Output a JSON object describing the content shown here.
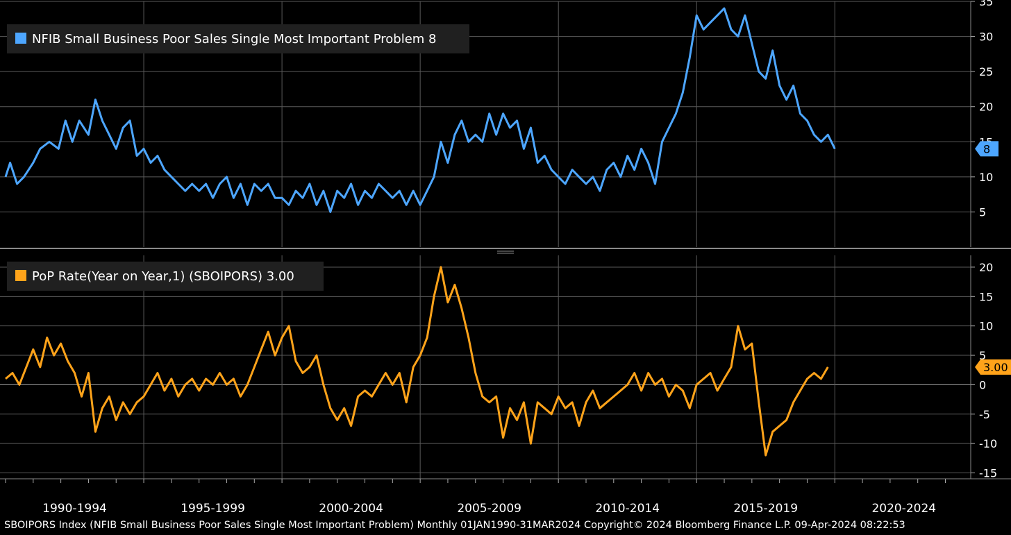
{
  "footer_text": "SBOIPORS Index (NFIB Small Business Poor Sales Single Most Important Problem) Monthly 01JAN1990-31MAR2024 Copyright© 2024 Bloomberg Finance L.P. 09-Apr-2024 08:22:53",
  "colors": {
    "top_series": "#4da6ff",
    "bottom_series": "#ffa31a",
    "grid": "#5a5a5a",
    "background": "#000000"
  },
  "x_period_labels": [
    "1990-1994",
    "1995-1999",
    "2000-2004",
    "2005-2009",
    "2010-2014",
    "2015-2019",
    "2020-2024"
  ],
  "chart_data": [
    {
      "type": "line",
      "legend": "NFIB Small Business Poor Sales Single Most Important Problem 8",
      "last_value_label": "8",
      "y_axis_side": "right",
      "ylim": [
        0,
        35
      ],
      "yticks": [
        5,
        10,
        15,
        20,
        25,
        30,
        35
      ],
      "xlim": [
        "1990-01",
        "2024-12"
      ],
      "grid": true,
      "series": [
        {
          "points": [
            [
              "1990-01",
              10
            ],
            [
              "1990-03",
              12
            ],
            [
              "1990-06",
              9
            ],
            [
              "1990-09",
              10
            ],
            [
              "1991-01",
              12
            ],
            [
              "1991-04",
              14
            ],
            [
              "1991-08",
              15
            ],
            [
              "1991-12",
              14
            ],
            [
              "1992-03",
              18
            ],
            [
              "1992-06",
              15
            ],
            [
              "1992-09",
              18
            ],
            [
              "1993-01",
              16
            ],
            [
              "1993-04",
              21
            ],
            [
              "1993-07",
              18
            ],
            [
              "1993-10",
              16
            ],
            [
              "1994-01",
              14
            ],
            [
              "1994-04",
              17
            ],
            [
              "1994-07",
              18
            ],
            [
              "1994-10",
              13
            ],
            [
              "1995-01",
              14
            ],
            [
              "1995-04",
              12
            ],
            [
              "1995-07",
              13
            ],
            [
              "1995-10",
              11
            ],
            [
              "1996-01",
              10
            ],
            [
              "1996-04",
              9
            ],
            [
              "1996-07",
              8
            ],
            [
              "1996-10",
              9
            ],
            [
              "1997-01",
              8
            ],
            [
              "1997-04",
              9
            ],
            [
              "1997-07",
              7
            ],
            [
              "1997-10",
              9
            ],
            [
              "1998-01",
              10
            ],
            [
              "1998-04",
              7
            ],
            [
              "1998-07",
              9
            ],
            [
              "1998-10",
              6
            ],
            [
              "1999-01",
              9
            ],
            [
              "1999-04",
              8
            ],
            [
              "1999-07",
              9
            ],
            [
              "1999-10",
              7
            ],
            [
              "2000-01",
              7
            ],
            [
              "2000-04",
              6
            ],
            [
              "2000-07",
              8
            ],
            [
              "2000-10",
              7
            ],
            [
              "2001-01",
              9
            ],
            [
              "2001-04",
              6
            ],
            [
              "2001-07",
              8
            ],
            [
              "2001-10",
              5
            ],
            [
              "2002-01",
              8
            ],
            [
              "2002-04",
              7
            ],
            [
              "2002-07",
              9
            ],
            [
              "2002-10",
              6
            ],
            [
              "2003-01",
              8
            ],
            [
              "2003-04",
              7
            ],
            [
              "2003-07",
              9
            ],
            [
              "2003-10",
              8
            ],
            [
              "2004-01",
              7
            ],
            [
              "2004-04",
              8
            ],
            [
              "2004-07",
              6
            ],
            [
              "2004-10",
              8
            ],
            [
              "2005-01",
              6
            ],
            [
              "2005-04",
              8
            ],
            [
              "2005-07",
              10
            ],
            [
              "2005-10",
              15
            ],
            [
              "2006-01",
              12
            ],
            [
              "2006-04",
              16
            ],
            [
              "2006-07",
              18
            ],
            [
              "2006-10",
              15
            ],
            [
              "2007-01",
              16
            ],
            [
              "2007-04",
              15
            ],
            [
              "2007-07",
              19
            ],
            [
              "2007-10",
              16
            ],
            [
              "2008-01",
              19
            ],
            [
              "2008-04",
              17
            ],
            [
              "2008-07",
              18
            ],
            [
              "2008-10",
              14
            ],
            [
              "2009-01",
              17
            ],
            [
              "2009-04",
              12
            ],
            [
              "2009-07",
              13
            ],
            [
              "2009-10",
              11
            ],
            [
              "2010-01",
              10
            ],
            [
              "2010-04",
              9
            ],
            [
              "2010-07",
              11
            ],
            [
              "2010-10",
              10
            ],
            [
              "2011-01",
              9
            ],
            [
              "2011-04",
              10
            ],
            [
              "2011-07",
              8
            ],
            [
              "2011-10",
              11
            ],
            [
              "2012-01",
              12
            ],
            [
              "2012-04",
              10
            ],
            [
              "2012-07",
              13
            ],
            [
              "2012-10",
              11
            ],
            [
              "2013-01",
              14
            ],
            [
              "2013-04",
              12
            ],
            [
              "2013-07",
              9
            ],
            [
              "2013-10",
              15
            ],
            [
              "2014-01",
              17
            ],
            [
              "2014-04",
              19
            ],
            [
              "2014-07",
              22
            ],
            [
              "2014-10",
              27
            ],
            [
              "2015-01",
              33
            ],
            [
              "2015-04",
              31
            ],
            [
              "2015-07",
              32
            ],
            [
              "2015-10",
              33
            ],
            [
              "2016-01",
              34
            ],
            [
              "2016-04",
              31
            ],
            [
              "2016-07",
              30
            ],
            [
              "2016-10",
              33
            ],
            [
              "2017-01",
              29
            ],
            [
              "2017-04",
              25
            ],
            [
              "2017-07",
              24
            ],
            [
              "2017-10",
              28
            ],
            [
              "2018-01",
              23
            ],
            [
              "2018-04",
              21
            ],
            [
              "2018-07",
              23
            ],
            [
              "2018-10",
              19
            ],
            [
              "2019-01",
              18
            ],
            [
              "2019-04",
              16
            ],
            [
              "2019-07",
              15
            ],
            [
              "2019-10",
              16
            ],
            [
              "2020-01",
              14
            ]
          ]
        }
      ]
    },
    {
      "type": "line",
      "legend": "PoP Rate(Year on Year,1) (SBOIPORS) 3.00",
      "last_value_label": "3.00",
      "y_axis_side": "right",
      "ylim": [
        -16,
        22
      ],
      "yticks": [
        -15,
        -10,
        -5,
        0,
        5,
        10,
        15,
        20
      ],
      "xlim": [
        "1990-01",
        "2024-12"
      ],
      "grid": true,
      "series": [
        {
          "points": [
            [
              "1990-01",
              1
            ],
            [
              "1990-04",
              2
            ],
            [
              "1990-07",
              0
            ],
            [
              "1990-10",
              3
            ],
            [
              "1991-01",
              6
            ],
            [
              "1991-04",
              3
            ],
            [
              "1991-07",
              8
            ],
            [
              "1991-10",
              5
            ],
            [
              "1992-01",
              7
            ],
            [
              "1992-04",
              4
            ],
            [
              "1992-07",
              2
            ],
            [
              "1992-10",
              -2
            ],
            [
              "1993-01",
              2
            ],
            [
              "1993-04",
              -8
            ],
            [
              "1993-07",
              -4
            ],
            [
              "1993-10",
              -2
            ],
            [
              "1994-01",
              -6
            ],
            [
              "1994-04",
              -3
            ],
            [
              "1994-07",
              -5
            ],
            [
              "1994-10",
              -3
            ],
            [
              "1995-01",
              -2
            ],
            [
              "1995-04",
              0
            ],
            [
              "1995-07",
              2
            ],
            [
              "1995-10",
              -1
            ],
            [
              "1996-01",
              1
            ],
            [
              "1996-04",
              -2
            ],
            [
              "1996-07",
              0
            ],
            [
              "1996-10",
              1
            ],
            [
              "1997-01",
              -1
            ],
            [
              "1997-04",
              1
            ],
            [
              "1997-07",
              0
            ],
            [
              "1997-10",
              2
            ],
            [
              "1998-01",
              0
            ],
            [
              "1998-04",
              1
            ],
            [
              "1998-07",
              -2
            ],
            [
              "1998-10",
              0
            ],
            [
              "1999-01",
              3
            ],
            [
              "1999-04",
              6
            ],
            [
              "1999-07",
              9
            ],
            [
              "1999-10",
              5
            ],
            [
              "2000-01",
              8
            ],
            [
              "2000-04",
              10
            ],
            [
              "2000-07",
              4
            ],
            [
              "2000-10",
              2
            ],
            [
              "2001-01",
              3
            ],
            [
              "2001-04",
              5
            ],
            [
              "2001-07",
              0
            ],
            [
              "2001-10",
              -4
            ],
            [
              "2002-01",
              -6
            ],
            [
              "2002-04",
              -4
            ],
            [
              "2002-07",
              -7
            ],
            [
              "2002-10",
              -2
            ],
            [
              "2003-01",
              -1
            ],
            [
              "2003-04",
              -2
            ],
            [
              "2003-07",
              0
            ],
            [
              "2003-10",
              2
            ],
            [
              "2004-01",
              0
            ],
            [
              "2004-04",
              2
            ],
            [
              "2004-07",
              -3
            ],
            [
              "2004-10",
              3
            ],
            [
              "2005-01",
              5
            ],
            [
              "2005-04",
              8
            ],
            [
              "2005-07",
              15
            ],
            [
              "2005-10",
              20
            ],
            [
              "2006-01",
              14
            ],
            [
              "2006-04",
              17
            ],
            [
              "2006-07",
              13
            ],
            [
              "2006-10",
              8
            ],
            [
              "2007-01",
              2
            ],
            [
              "2007-04",
              -2
            ],
            [
              "2007-07",
              -3
            ],
            [
              "2007-10",
              -2
            ],
            [
              "2008-01",
              -9
            ],
            [
              "2008-04",
              -4
            ],
            [
              "2008-07",
              -6
            ],
            [
              "2008-10",
              -3
            ],
            [
              "2009-01",
              -10
            ],
            [
              "2009-04",
              -3
            ],
            [
              "2009-07",
              -4
            ],
            [
              "2009-10",
              -5
            ],
            [
              "2010-01",
              -2
            ],
            [
              "2010-04",
              -4
            ],
            [
              "2010-07",
              -3
            ],
            [
              "2010-10",
              -7
            ],
            [
              "2011-01",
              -3
            ],
            [
              "2011-04",
              -1
            ],
            [
              "2011-07",
              -4
            ],
            [
              "2011-10",
              -3
            ],
            [
              "2012-01",
              -2
            ],
            [
              "2012-04",
              -1
            ],
            [
              "2012-07",
              0
            ],
            [
              "2012-10",
              2
            ],
            [
              "2013-01",
              -1
            ],
            [
              "2013-04",
              2
            ],
            [
              "2013-07",
              0
            ],
            [
              "2013-10",
              1
            ],
            [
              "2014-01",
              -2
            ],
            [
              "2014-04",
              0
            ],
            [
              "2014-07",
              -1
            ],
            [
              "2014-10",
              -4
            ],
            [
              "2015-01",
              0
            ],
            [
              "2015-04",
              1
            ],
            [
              "2015-07",
              2
            ],
            [
              "2015-10",
              -1
            ],
            [
              "2016-01",
              1
            ],
            [
              "2016-04",
              3
            ],
            [
              "2016-07",
              10
            ],
            [
              "2016-10",
              6
            ],
            [
              "2017-01",
              7
            ],
            [
              "2017-04",
              -3
            ],
            [
              "2017-07",
              -12
            ],
            [
              "2017-10",
              -8
            ],
            [
              "2018-01",
              -7
            ],
            [
              "2018-04",
              -6
            ],
            [
              "2018-07",
              -3
            ],
            [
              "2018-10",
              -1
            ],
            [
              "2019-01",
              1
            ],
            [
              "2019-04",
              2
            ],
            [
              "2019-07",
              1
            ],
            [
              "2019-10",
              3
            ]
          ]
        }
      ]
    }
  ]
}
